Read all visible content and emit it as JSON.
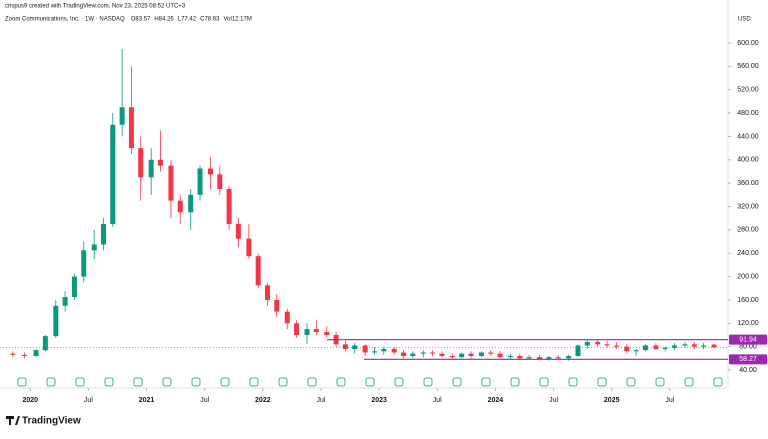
{
  "header": {
    "credit": "crispus9 created with TradingView.com, Nov 23, 2025 08:52 UTC+3",
    "symbol": "Zoom Communications, Inc. · 1W · NASDAQ",
    "ohlc": [
      {
        "label": "O",
        "value": 83.57
      },
      {
        "label": "H",
        "value": 84.26
      },
      {
        "label": "L",
        "value": 77.42
      },
      {
        "label": "C",
        "value": 78.63
      },
      {
        "label": "Vol",
        "value": "12.17M"
      }
    ],
    "currency": "USD"
  },
  "footer": {
    "logo": "TradingView"
  },
  "chart_data": {
    "type": "candlestick",
    "up_color": "#089981",
    "down_color": "#f23645",
    "xlim": [
      2019.74,
      2026.0
    ],
    "ylim": [
      40,
      600
    ],
    "xticks": [
      2020,
      {
        "value": 2020.5,
        "label": "Jul"
      },
      2021,
      {
        "value": 2021.5,
        "label": "Jul"
      },
      2022,
      {
        "value": 2022.5,
        "label": "Jul"
      },
      2023,
      {
        "value": 2023.5,
        "label": "Jul"
      },
      2024,
      {
        "value": 2024.5,
        "label": "Jul"
      },
      2025,
      {
        "value": 2025.5,
        "label": "Jul"
      }
    ],
    "yticks": [
      {
        "value": 40,
        "label": "40.00"
      },
      {
        "value": 80,
        "label": "80.00"
      },
      {
        "value": 120,
        "label": "120.00"
      },
      {
        "value": 160,
        "label": "160.00"
      },
      {
        "value": 200,
        "label": "200.00"
      },
      {
        "value": 240,
        "label": "240.00"
      },
      {
        "value": 280,
        "label": "280.00"
      },
      {
        "value": 320,
        "label": "320.00"
      },
      {
        "value": 360,
        "label": "360.00"
      },
      {
        "value": 400,
        "label": "400.00"
      },
      {
        "value": 440,
        "label": "440.00"
      },
      {
        "value": 480,
        "label": "480.00"
      },
      {
        "value": 520,
        "label": "520.00"
      },
      {
        "value": 560,
        "label": "560.00"
      },
      {
        "value": 600,
        "label": "600.00"
      }
    ],
    "levels": [
      {
        "value": 91.94,
        "start": 2022.55,
        "color": "#9c27b0"
      },
      {
        "value": 58.27,
        "start": 2022.87,
        "color": "#9c27b0"
      }
    ],
    "x": [
      2019.85,
      2019.95,
      2020.05,
      2020.13,
      2020.22,
      2020.3,
      2020.38,
      2020.46,
      2020.55,
      2020.63,
      2020.71,
      2020.79,
      2020.87,
      2020.95,
      2021.04,
      2021.12,
      2021.21,
      2021.29,
      2021.38,
      2021.46,
      2021.55,
      2021.63,
      2021.71,
      2021.79,
      2021.88,
      2021.96,
      2022.04,
      2022.12,
      2022.21,
      2022.29,
      2022.38,
      2022.46,
      2022.55,
      2022.63,
      2022.71,
      2022.79,
      2022.88,
      2022.96,
      2023.04,
      2023.13,
      2023.21,
      2023.29,
      2023.38,
      2023.46,
      2023.54,
      2023.63,
      2023.71,
      2023.79,
      2023.88,
      2023.96,
      2024.04,
      2024.13,
      2024.21,
      2024.29,
      2024.38,
      2024.46,
      2024.54,
      2024.63,
      2024.71,
      2024.79,
      2024.88,
      2024.96,
      2025.04,
      2025.13,
      2025.21,
      2025.29,
      2025.38,
      2025.46,
      2025.54,
      2025.63,
      2025.71,
      2025.79,
      2025.88
    ],
    "open": [
      68,
      66,
      64,
      74,
      98,
      150,
      165,
      200,
      245,
      255,
      290,
      460,
      490,
      420,
      370,
      400,
      390,
      330,
      310,
      340,
      385,
      375,
      350,
      290,
      265,
      235,
      185,
      160,
      140,
      120,
      100,
      110,
      105,
      100,
      84,
      76,
      82,
      70,
      72,
      76,
      70,
      64,
      68,
      70,
      68,
      64,
      62,
      68,
      64,
      70,
      68,
      62,
      64,
      60,
      62,
      58,
      62,
      60,
      64,
      82,
      88,
      84,
      82,
      80,
      72,
      74,
      82,
      76,
      78,
      82,
      84,
      80,
      83.57
    ],
    "high": [
      72,
      70,
      76,
      100,
      160,
      175,
      205,
      260,
      280,
      300,
      480,
      590,
      560,
      440,
      420,
      450,
      400,
      340,
      350,
      390,
      405,
      390,
      355,
      300,
      290,
      240,
      190,
      170,
      145,
      125,
      120,
      125,
      115,
      105,
      90,
      86,
      84,
      80,
      80,
      80,
      74,
      72,
      74,
      74,
      72,
      68,
      70,
      72,
      72,
      74,
      72,
      68,
      68,
      66,
      66,
      64,
      66,
      66,
      84,
      92,
      92,
      90,
      88,
      84,
      76,
      84,
      86,
      80,
      86,
      88,
      88,
      86,
      84.26
    ],
    "low": [
      62,
      60,
      62,
      72,
      95,
      140,
      160,
      190,
      230,
      245,
      285,
      440,
      410,
      330,
      340,
      380,
      300,
      290,
      280,
      330,
      350,
      340,
      280,
      250,
      230,
      180,
      150,
      130,
      110,
      95,
      85,
      100,
      95,
      80,
      72,
      68,
      64,
      66,
      66,
      66,
      60,
      60,
      62,
      64,
      62,
      58,
      60,
      60,
      62,
      64,
      60,
      58,
      58,
      58,
      56,
      56,
      56,
      56,
      62,
      76,
      80,
      78,
      76,
      68,
      64,
      72,
      74,
      72,
      74,
      78,
      76,
      76,
      77.42
    ],
    "close": [
      66,
      64,
      74,
      98,
      150,
      165,
      200,
      245,
      255,
      290,
      460,
      490,
      420,
      370,
      400,
      390,
      330,
      310,
      340,
      385,
      375,
      350,
      290,
      265,
      235,
      185,
      160,
      140,
      120,
      100,
      110,
      105,
      100,
      84,
      76,
      82,
      70,
      72,
      76,
      70,
      64,
      68,
      70,
      68,
      64,
      62,
      68,
      64,
      70,
      68,
      62,
      64,
      60,
      62,
      58,
      62,
      60,
      64,
      82,
      88,
      84,
      82,
      80,
      72,
      74,
      82,
      76,
      78,
      82,
      84,
      80,
      82,
      78.63
    ]
  }
}
